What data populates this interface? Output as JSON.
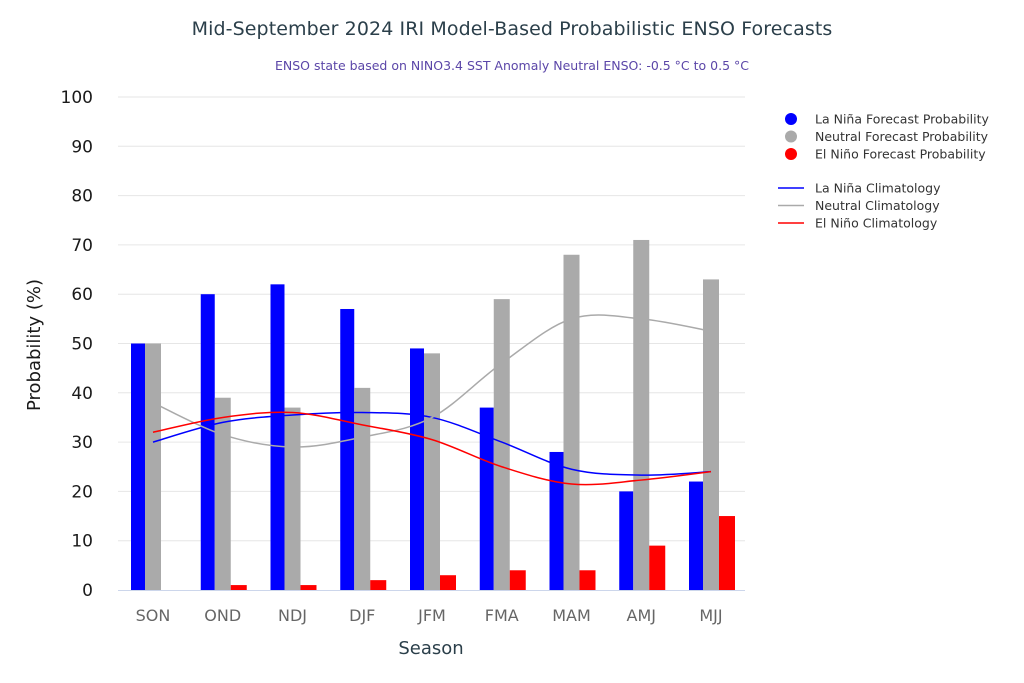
{
  "title": "Mid-September 2024 IRI Model-Based Probabilistic ENSO Forecasts",
  "subtitle": "ENSO state based on NINO3.4 SST Anomaly Neutral ENSO: -0.5 °C to 0.5 °C",
  "chart_data": {
    "type": "bar",
    "title": "Mid-September 2024 IRI Model-Based Probabilistic ENSO Forecasts",
    "subtitle": "ENSO state based on NINO3.4 SST Anomaly Neutral ENSO: -0.5 °C to 0.5 °C",
    "xlabel": "Season",
    "ylabel": "Probability (%)",
    "ylim": [
      0,
      100
    ],
    "yticks": [
      0,
      10,
      20,
      30,
      40,
      50,
      60,
      70,
      80,
      90,
      100
    ],
    "grid": true,
    "legend_position": "top-right",
    "categories": [
      "SON",
      "OND",
      "NDJ",
      "DJF",
      "JFM",
      "FMA",
      "MAM",
      "AMJ",
      "MJJ"
    ],
    "series": [
      {
        "name": "La Niña Forecast Probability",
        "kind": "bar",
        "color": "#0000ff",
        "values": [
          50,
          60,
          62,
          57,
          49,
          37,
          28,
          20,
          22
        ]
      },
      {
        "name": "Neutral Forecast Probability",
        "kind": "bar",
        "color": "#aaaaaa",
        "values": [
          50,
          39,
          37,
          41,
          48,
          59,
          68,
          71,
          63
        ]
      },
      {
        "name": "El Niño Forecast Probability",
        "kind": "bar",
        "color": "#ff0000",
        "values": [
          0,
          1,
          1,
          2,
          3,
          4,
          4,
          9,
          15
        ]
      },
      {
        "name": "La Niña Climatology",
        "kind": "line",
        "color": "#0000ff",
        "values": [
          30,
          34,
          35.5,
          36,
          35,
          30,
          24.5,
          23.3,
          24
        ]
      },
      {
        "name": "Neutral Climatology",
        "kind": "line",
        "color": "#aaaaaa",
        "values": [
          38,
          31.5,
          29,
          31,
          35,
          46,
          55,
          55,
          52.5
        ]
      },
      {
        "name": "El Niño Climatology",
        "kind": "line",
        "color": "#ff0000",
        "values": [
          32,
          35,
          36,
          33.5,
          30.5,
          25,
          21.5,
          22.3,
          24
        ]
      }
    ]
  }
}
